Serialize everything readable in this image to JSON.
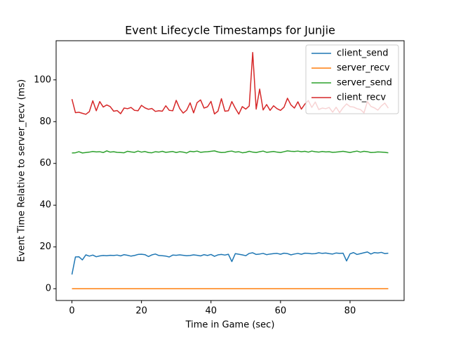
{
  "chart_data": {
    "type": "line",
    "title": "Event Lifecycle Timestamps for Junjie",
    "x_label": "Time in Game (sec)",
    "y_label": "Event Time Relative to server_recv (ms)",
    "x": [
      0,
      1,
      2,
      3,
      4,
      5,
      6,
      7,
      8,
      9,
      10,
      11,
      12,
      13,
      14,
      15,
      16,
      17,
      18,
      19,
      20,
      21,
      22,
      23,
      24,
      25,
      26,
      27,
      28,
      29,
      30,
      31,
      32,
      33,
      34,
      35,
      36,
      37,
      38,
      39,
      40,
      41,
      42,
      43,
      44,
      45,
      46,
      47,
      48,
      49,
      50,
      51,
      52,
      53,
      54,
      55,
      56,
      57,
      58,
      59,
      60,
      61,
      62,
      63,
      64,
      65,
      66,
      67,
      68,
      69,
      70,
      71,
      72,
      73,
      74,
      75,
      76,
      77,
      78,
      79,
      80,
      81,
      82,
      83,
      84,
      85,
      86,
      87,
      88,
      89,
      90,
      91
    ],
    "series": [
      {
        "name": "client_send",
        "color": "#1f77b4",
        "values": [
          6.8,
          15.2,
          15.3,
          13.8,
          16.2,
          15.6,
          16.1,
          15.3,
          15.7,
          15.9,
          15.8,
          16.0,
          15.9,
          16.1,
          15.7,
          16.3,
          16.0,
          15.6,
          15.9,
          16.4,
          16.5,
          16.3,
          15.4,
          16.2,
          16.6,
          15.9,
          15.8,
          15.6,
          15.2,
          16.1,
          16.0,
          16.2,
          16.0,
          15.8,
          15.9,
          16.2,
          16.0,
          15.7,
          16.3,
          15.9,
          16.4,
          15.5,
          16.2,
          16.4,
          16.1,
          16.5,
          13.0,
          16.8,
          16.5,
          16.2,
          15.8,
          16.9,
          17.2,
          16.4,
          16.6,
          16.9,
          16.3,
          16.6,
          16.8,
          16.9,
          16.5,
          17.0,
          16.8,
          16.2,
          16.6,
          16.9,
          16.5,
          17.0,
          16.9,
          16.7,
          16.8,
          17.2,
          16.9,
          17.1,
          16.8,
          16.6,
          17.1,
          16.9,
          17.0,
          13.3,
          16.7,
          17.3,
          16.4,
          16.8,
          17.2,
          17.6,
          16.6,
          17.3,
          17.1,
          17.4,
          16.8,
          17.0
        ]
      },
      {
        "name": "server_recv",
        "color": "#ff7f0e",
        "values": [
          0,
          0,
          0,
          0,
          0,
          0,
          0,
          0,
          0,
          0,
          0,
          0,
          0,
          0,
          0,
          0,
          0,
          0,
          0,
          0,
          0,
          0,
          0,
          0,
          0,
          0,
          0,
          0,
          0,
          0,
          0,
          0,
          0,
          0,
          0,
          0,
          0,
          0,
          0,
          0,
          0,
          0,
          0,
          0,
          0,
          0,
          0,
          0,
          0,
          0,
          0,
          0,
          0,
          0,
          0,
          0,
          0,
          0,
          0,
          0,
          0,
          0,
          0,
          0,
          0,
          0,
          0,
          0,
          0,
          0,
          0,
          0,
          0,
          0,
          0,
          0,
          0,
          0,
          0,
          0,
          0,
          0,
          0,
          0,
          0,
          0,
          0,
          0,
          0,
          0,
          0,
          0
        ]
      },
      {
        "name": "server_send",
        "color": "#2ca02c",
        "values": [
          65.0,
          65.1,
          65.6,
          65.0,
          65.2,
          65.4,
          65.7,
          65.5,
          65.6,
          65.2,
          66.0,
          65.4,
          65.6,
          65.3,
          65.2,
          65.1,
          65.8,
          65.5,
          65.3,
          65.9,
          65.4,
          65.7,
          65.2,
          65.1,
          65.6,
          65.4,
          65.8,
          65.3,
          65.5,
          65.7,
          65.2,
          65.6,
          65.4,
          65.0,
          65.8,
          65.6,
          65.9,
          65.3,
          65.5,
          65.6,
          65.8,
          66.0,
          65.5,
          65.2,
          65.3,
          65.7,
          65.9,
          65.4,
          65.6,
          65.1,
          65.3,
          65.8,
          65.4,
          65.2,
          65.6,
          65.9,
          65.3,
          65.5,
          65.7,
          65.4,
          65.2,
          65.6,
          66.0,
          65.8,
          65.7,
          65.9,
          65.6,
          65.8,
          65.4,
          65.9,
          65.6,
          65.4,
          65.7,
          65.5,
          65.6,
          65.3,
          65.4,
          65.6,
          65.8,
          65.5,
          65.2,
          65.6,
          65.9,
          65.4,
          65.8,
          65.6,
          65.2,
          65.3,
          65.5,
          65.4,
          65.3,
          65.1
        ]
      },
      {
        "name": "client_recv",
        "color": "#d62728",
        "values": [
          90.8,
          84.3,
          84.5,
          84.0,
          83.5,
          84.8,
          90.0,
          85.2,
          89.6,
          87.0,
          88.0,
          87.2,
          85.0,
          85.3,
          83.8,
          86.5,
          86.2,
          86.8,
          85.4,
          85.2,
          87.8,
          86.6,
          85.9,
          86.3,
          84.9,
          85.2,
          85.0,
          87.6,
          85.4,
          85.2,
          90.2,
          86.3,
          84.1,
          85.5,
          89.0,
          84.2,
          89.1,
          90.4,
          86.5,
          87.1,
          89.7,
          83.7,
          85.0,
          91.0,
          85.0,
          85.2,
          89.6,
          86.4,
          83.6,
          87.2,
          86.0,
          87.5,
          113.1,
          86.0,
          95.6,
          85.6,
          88.2,
          85.4,
          87.6,
          86.2,
          85.4,
          86.9,
          91.2,
          88.0,
          86.5,
          89.5,
          86.0,
          88.4,
          90.1,
          86.8,
          89.4,
          85.8,
          86.5,
          86.2,
          86.8,
          84.5,
          86.9,
          84.3,
          86.7,
          88.5,
          87.2,
          87.0,
          86.2,
          85.8,
          84.2,
          89.6,
          87.3,
          86.6,
          85.5,
          87.5,
          88.9,
          86.5
        ]
      }
    ],
    "xlim": [
      -4.55,
      95.55
    ],
    "xticks": [
      0,
      20,
      40,
      60,
      80
    ],
    "ylim": [
      -5.65,
      118.75
    ],
    "yticks": [
      0,
      20,
      40,
      60,
      80,
      100
    ],
    "grid": false,
    "legend": "upper right"
  }
}
